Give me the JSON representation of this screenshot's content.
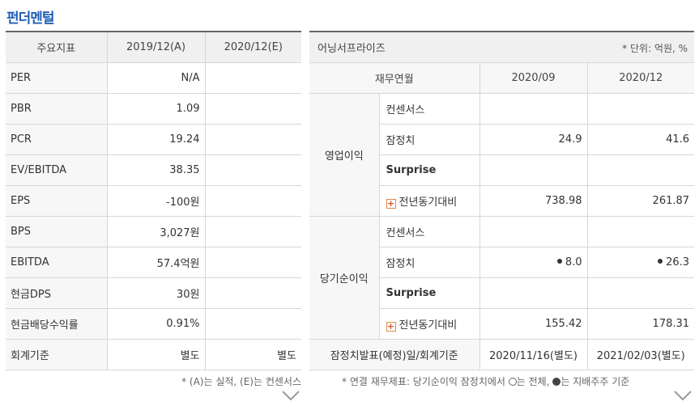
{
  "title": "펀더멘털",
  "left": {
    "headers": [
      "주요지표",
      "2019/12(A)",
      "2020/12(E)"
    ],
    "rows": [
      {
        "label": "PER",
        "a": "N/A",
        "e": ""
      },
      {
        "label": "PBR",
        "a": "1.09",
        "e": ""
      },
      {
        "label": "PCR",
        "a": "19.24",
        "e": ""
      },
      {
        "label": "EV/EBITDA",
        "a": "38.35",
        "e": ""
      },
      {
        "label": "EPS",
        "a": "-100원",
        "e": ""
      },
      {
        "label": "BPS",
        "a": "3,027원",
        "e": ""
      },
      {
        "label": "EBITDA",
        "a": "57.4억원",
        "e": ""
      },
      {
        "label": "현금DPS",
        "a": "30원",
        "e": ""
      },
      {
        "label": "현금배당수익률",
        "a": "0.91%",
        "e": ""
      },
      {
        "label": "회계기준",
        "a": "별도",
        "e": "별도"
      }
    ],
    "note": "* (A)는 실적, (E)는 컨센서스"
  },
  "right": {
    "title": "어닝서프라이즈",
    "unit": "* 단위: 억원, %",
    "headers": [
      "재무연월",
      "2020/09",
      "2020/12"
    ],
    "groups": [
      {
        "name": "영업이익",
        "rows": [
          {
            "label": "컨센서스",
            "v1": "",
            "v2": "",
            "bold": false,
            "icon": false
          },
          {
            "label": "잠정치",
            "v1": "24.9",
            "v2": "41.6",
            "bold": false,
            "icon": false
          },
          {
            "label": "Surprise",
            "v1": "",
            "v2": "",
            "bold": true,
            "icon": false
          },
          {
            "label": "전년동기대비",
            "v1": "738.98",
            "v2": "261.87",
            "bold": false,
            "icon": true
          }
        ]
      },
      {
        "name": "당기순이익",
        "rows": [
          {
            "label": "컨센서스",
            "v1": "",
            "v2": "",
            "bold": false,
            "icon": false
          },
          {
            "label": "잠정치",
            "v1": "8.0",
            "v2": "26.3",
            "bold": false,
            "icon": false,
            "dot": true
          },
          {
            "label": "Surprise",
            "v1": "",
            "v2": "",
            "bold": true,
            "icon": false
          },
          {
            "label": "전년동기대비",
            "v1": "155.42",
            "v2": "178.31",
            "bold": false,
            "icon": true
          }
        ]
      }
    ],
    "footer": {
      "label": "잠정치발표(예정)일/회계기준",
      "v1": "2020/11/16(별도)",
      "v2": "2021/02/03(별도)"
    },
    "note_prefix": "* 연결 재무제표: 당기순이익 잠정치에서",
    "note_open": "는 전체,",
    "note_fill": "는 지배주주 기준"
  }
}
